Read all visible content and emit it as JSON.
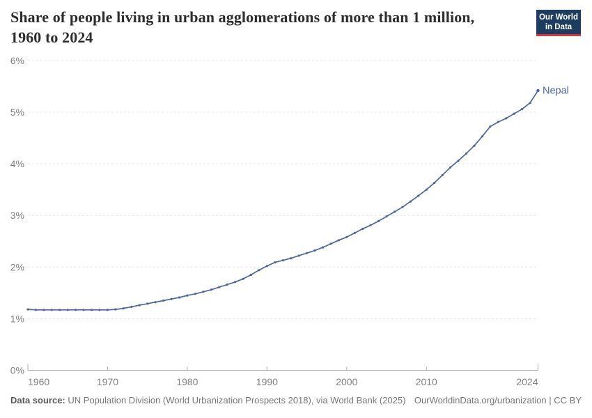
{
  "header": {
    "title_line1": "Share of people living in urban agglomerations of more than 1 million,",
    "title_line2": "1960 to 2024",
    "logo_line1": "Our World",
    "logo_line2": "in Data"
  },
  "footer": {
    "source_label": "Data source:",
    "source_text": " UN Population Division (World Urbanization Prospects 2018), via World Bank (2025)",
    "attribution": "OurWorldinData.org/urbanization | CC BY"
  },
  "colors": {
    "line": "#4c669c",
    "end_label": "#4c669c",
    "gridline": "#e3e3e3",
    "axis": "#a8a8a8",
    "tick_label": "#7f7f7f",
    "title": "#2d2d2d",
    "logo_bg": "#1d3c5f",
    "logo_red": "#d1353f"
  },
  "chart_data": {
    "type": "line",
    "title": "Share of people living in urban agglomerations of more than 1 million, 1960 to 2024",
    "xlabel": "",
    "ylabel": "",
    "xlim": [
      1960,
      2024
    ],
    "ylim": [
      0,
      6
    ],
    "grid": "horizontal-dashed",
    "x_ticks": [
      1960,
      1970,
      1980,
      1990,
      2000,
      2010,
      2024
    ],
    "y_ticks": [
      0,
      1,
      2,
      3,
      4,
      5,
      6
    ],
    "y_tick_labels": [
      "0%",
      "1%",
      "2%",
      "3%",
      "4%",
      "5%",
      "6%"
    ],
    "legend_position": "end-of-line-label",
    "series": [
      {
        "name": "Nepal",
        "color": "#4c669c",
        "years": [
          1960,
          1961,
          1962,
          1963,
          1964,
          1965,
          1966,
          1967,
          1968,
          1969,
          1970,
          1971,
          1972,
          1973,
          1974,
          1975,
          1976,
          1977,
          1978,
          1979,
          1980,
          1981,
          1982,
          1983,
          1984,
          1985,
          1986,
          1987,
          1988,
          1989,
          1990,
          1991,
          1992,
          1993,
          1994,
          1995,
          1996,
          1997,
          1998,
          1999,
          2000,
          2001,
          2002,
          2003,
          2004,
          2005,
          2006,
          2007,
          2008,
          2009,
          2010,
          2011,
          2012,
          2013,
          2014,
          2015,
          2016,
          2017,
          2018,
          2019,
          2020,
          2021,
          2022,
          2023,
          2024
        ],
        "values": [
          1.18,
          1.17,
          1.17,
          1.17,
          1.17,
          1.17,
          1.17,
          1.17,
          1.17,
          1.17,
          1.17,
          1.18,
          1.2,
          1.23,
          1.26,
          1.29,
          1.32,
          1.35,
          1.38,
          1.41,
          1.45,
          1.48,
          1.52,
          1.56,
          1.61,
          1.66,
          1.71,
          1.77,
          1.85,
          1.94,
          2.02,
          2.09,
          2.13,
          2.17,
          2.22,
          2.27,
          2.32,
          2.38,
          2.45,
          2.52,
          2.58,
          2.66,
          2.74,
          2.81,
          2.89,
          2.98,
          3.07,
          3.16,
          3.27,
          3.38,
          3.5,
          3.63,
          3.78,
          3.93,
          4.06,
          4.2,
          4.35,
          4.53,
          4.72,
          4.81,
          4.88,
          4.97,
          5.06,
          5.18,
          5.42
        ]
      }
    ]
  }
}
